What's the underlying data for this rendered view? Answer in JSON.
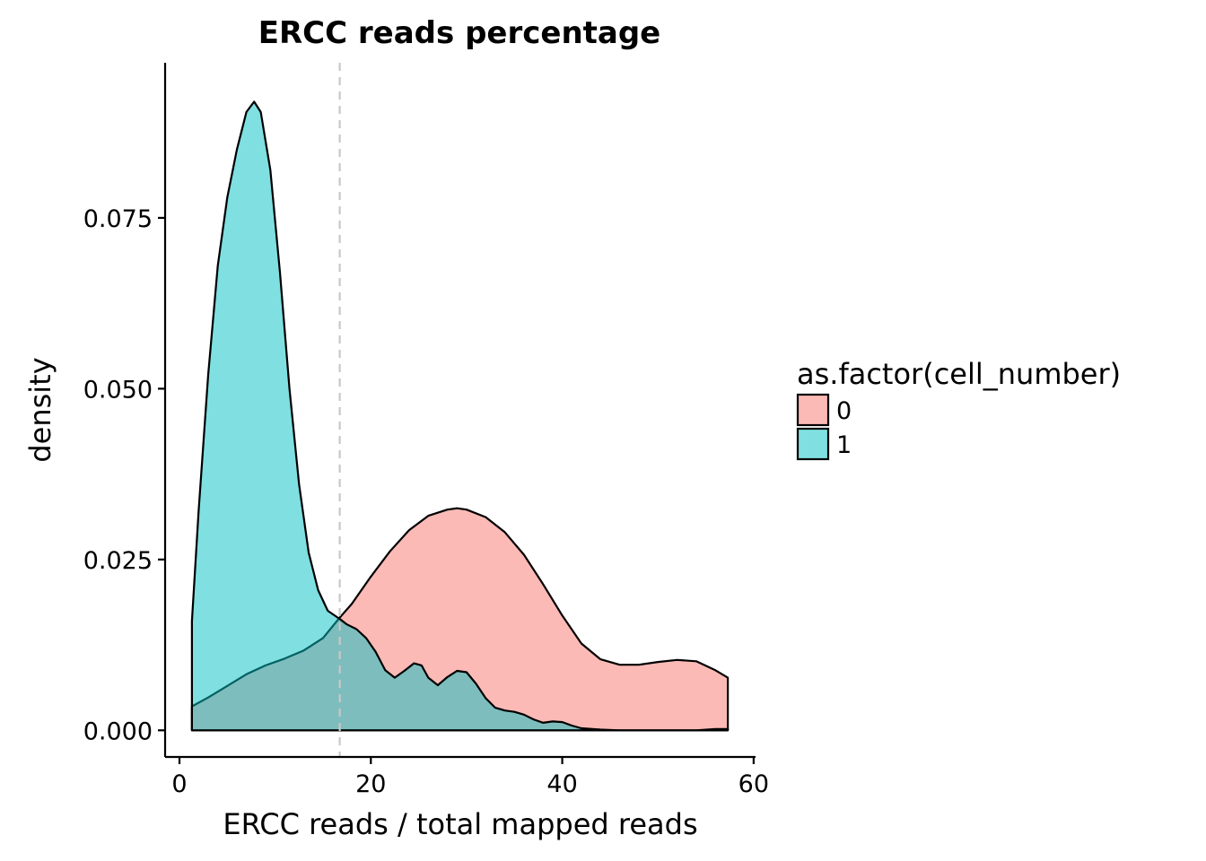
{
  "chart_data": {
    "type": "area",
    "title": "ERCC reads percentage",
    "xlabel": "ERCC reads / total mapped reads",
    "ylabel": "density",
    "xlim": [
      -1.5,
      60.2
    ],
    "ylim": [
      -0.0039,
      0.0977
    ],
    "x_ticks": [
      0,
      20,
      40,
      60
    ],
    "x_tick_labels": [
      "0",
      "20",
      "40",
      "60"
    ],
    "y_ticks": [
      0.0,
      0.025,
      0.05,
      0.075
    ],
    "y_tick_labels": [
      "0.000",
      "0.025",
      "0.050",
      "0.075"
    ],
    "grid": false,
    "legend": {
      "title": "as.factor(cell_number)",
      "placement": "right",
      "entries": [
        "0",
        "1"
      ]
    },
    "vline": {
      "x": 16.75,
      "style": "dashed",
      "color": "#c8c8c8"
    },
    "series": [
      {
        "name": "0",
        "fill": "#f8766d",
        "opacity": 0.5,
        "x": [
          1.3,
          3.0,
          5.0,
          7.0,
          9.0,
          11.0,
          13.0,
          15.0,
          16.75,
          18.0,
          20.0,
          22.0,
          24.0,
          26.0,
          28.0,
          29.0,
          30.0,
          32.0,
          34.0,
          36.0,
          38.0,
          40.0,
          42.0,
          44.0,
          46.0,
          48.0,
          50.0,
          52.0,
          54.0,
          56.0,
          57.3
        ],
        "y": [
          0.0035,
          0.0048,
          0.0065,
          0.0082,
          0.0095,
          0.0105,
          0.0117,
          0.0135,
          0.0165,
          0.0185,
          0.0225,
          0.0262,
          0.0293,
          0.0314,
          0.0323,
          0.0325,
          0.0323,
          0.0312,
          0.029,
          0.0257,
          0.0214,
          0.0168,
          0.0127,
          0.0104,
          0.0096,
          0.0096,
          0.01,
          0.0103,
          0.0101,
          0.0088,
          0.0077
        ]
      },
      {
        "name": "1",
        "fill": "#00bfc4",
        "opacity": 0.5,
        "x": [
          1.3,
          2.0,
          3.0,
          4.0,
          5.0,
          6.0,
          7.0,
          7.8,
          8.5,
          9.5,
          10.5,
          11.5,
          12.5,
          13.5,
          14.5,
          15.5,
          16.75,
          17.5,
          18.5,
          19.5,
          20.5,
          21.5,
          22.5,
          23.5,
          24.5,
          25.3,
          26.0,
          27.0,
          28.0,
          29.0,
          30.0,
          31.0,
          32.0,
          33.0,
          34.0,
          35.0,
          36.0,
          37.0,
          38.0,
          39.0,
          40.0,
          41.0,
          42.0,
          44.0,
          46.0,
          48.0,
          50.0,
          52.0,
          54.0,
          56.0,
          57.3
        ],
        "y": [
          0.016,
          0.032,
          0.052,
          0.068,
          0.078,
          0.085,
          0.0905,
          0.092,
          0.0905,
          0.082,
          0.067,
          0.05,
          0.036,
          0.026,
          0.0205,
          0.0175,
          0.0163,
          0.0155,
          0.0148,
          0.0135,
          0.0115,
          0.0088,
          0.0077,
          0.0087,
          0.0098,
          0.0095,
          0.0077,
          0.0066,
          0.0078,
          0.0087,
          0.0085,
          0.0068,
          0.0047,
          0.0033,
          0.0029,
          0.0027,
          0.0023,
          0.0016,
          0.0011,
          0.0013,
          0.0012,
          0.0007,
          0.0003,
          0.0001,
          0.0,
          0.0,
          0.0,
          0.0,
          0.0,
          0.0002,
          0.0002
        ]
      }
    ]
  }
}
